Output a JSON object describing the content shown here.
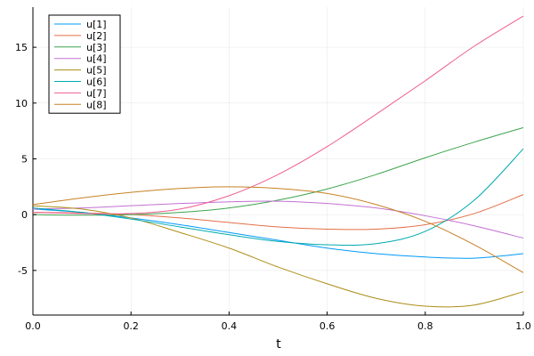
{
  "chart_data": {
    "type": "line",
    "title": "",
    "xlabel": "t",
    "ylabel": "",
    "xlim": [
      0,
      1
    ],
    "ylim": [
      -9,
      18.6
    ],
    "xticks": [
      0.0,
      0.2,
      0.4,
      0.6,
      0.8,
      1.0
    ],
    "xtick_labels": [
      "0.0",
      "0.2",
      "0.4",
      "0.6",
      "0.8",
      "1.0"
    ],
    "yticks": [
      -5,
      0,
      5,
      10,
      15
    ],
    "ytick_labels": [
      "-5",
      "0",
      "5",
      "10",
      "15"
    ],
    "grid": true,
    "legend_position": "top-left",
    "x": [
      0.0,
      0.1,
      0.2,
      0.3,
      0.4,
      0.5,
      0.6,
      0.7,
      0.8,
      0.9,
      1.0
    ],
    "series": [
      {
        "name": "u[1]",
        "color": "#009AFA",
        "values": [
          0.5,
          0.2,
          -0.3,
          -0.9,
          -1.6,
          -2.3,
          -3.0,
          -3.5,
          -3.8,
          -3.9,
          -3.5
        ]
      },
      {
        "name": "u[2]",
        "color": "#E36F47",
        "values": [
          0.2,
          0.15,
          0.0,
          -0.3,
          -0.7,
          -1.1,
          -1.3,
          -1.3,
          -0.9,
          0.1,
          1.8
        ]
      },
      {
        "name": "u[3]",
        "color": "#3EA44E",
        "values": [
          0.0,
          -0.05,
          0.0,
          0.2,
          0.6,
          1.3,
          2.3,
          3.6,
          5.1,
          6.5,
          7.8
        ]
      },
      {
        "name": "u[4]",
        "color": "#C371D2",
        "values": [
          0.5,
          0.6,
          0.8,
          1.0,
          1.15,
          1.2,
          1.0,
          0.6,
          -0.1,
          -1.0,
          -2.1
        ]
      },
      {
        "name": "u[5]",
        "color": "#AC8E18",
        "values": [
          0.8,
          0.5,
          -0.3,
          -1.6,
          -3.0,
          -4.7,
          -6.2,
          -7.5,
          -8.2,
          -8.1,
          -6.9
        ]
      },
      {
        "name": "u[6]",
        "color": "#00AAAE",
        "values": [
          0.6,
          0.2,
          -0.4,
          -1.1,
          -1.8,
          -2.4,
          -2.7,
          -2.6,
          -1.5,
          1.3,
          5.9
        ]
      },
      {
        "name": "u[7]",
        "color": "#ED5E93",
        "values": [
          0.2,
          0.1,
          0.1,
          0.5,
          1.7,
          3.6,
          6.1,
          9.0,
          12.0,
          15.1,
          17.8
        ]
      },
      {
        "name": "u[8]",
        "color": "#C68225",
        "values": [
          0.9,
          1.5,
          2.0,
          2.35,
          2.5,
          2.35,
          1.9,
          0.9,
          -0.6,
          -2.7,
          -5.2
        ]
      }
    ]
  }
}
